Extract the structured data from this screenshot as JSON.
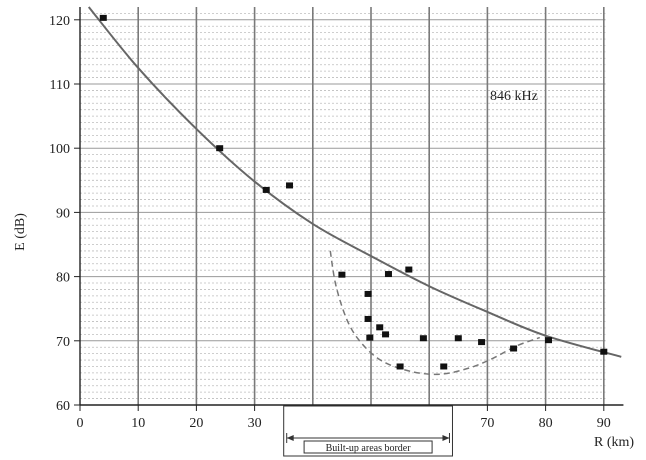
{
  "chart_data": {
    "type": "scatter",
    "title": "",
    "xlabel": "R (km)",
    "ylabel": "E (dB)",
    "xlim": [
      0,
      92
    ],
    "ylim": [
      60,
      122
    ],
    "x_ticks": [
      0,
      10,
      20,
      30,
      40,
      50,
      60,
      70,
      80,
      90
    ],
    "y_ticks": [
      60,
      70,
      80,
      90,
      100,
      110,
      120
    ],
    "grid": true,
    "annotations": [
      {
        "text": "846 kHz"
      },
      {
        "text": "Built-up areas border",
        "x_range": [
          35,
          64
        ]
      }
    ],
    "series": [
      {
        "type": "scatter",
        "points": [
          [
            4,
            120.3
          ],
          [
            24,
            100
          ],
          [
            32,
            93.5
          ],
          [
            36,
            94.2
          ],
          [
            45,
            80.3
          ],
          [
            49.5,
            77.3
          ],
          [
            49.5,
            73.4
          ],
          [
            49.8,
            70.5
          ],
          [
            51.5,
            72.1
          ],
          [
            52.5,
            71
          ],
          [
            53,
            80.4
          ],
          [
            56.5,
            81.1
          ],
          [
            55,
            66
          ],
          [
            59,
            70.4
          ],
          [
            62.5,
            66
          ],
          [
            65,
            70.4
          ],
          [
            69,
            69.8
          ],
          [
            74.5,
            68.8
          ],
          [
            80.5,
            70.1
          ],
          [
            90,
            68.3
          ]
        ]
      },
      {
        "type": "line",
        "style": "solid",
        "points": [
          [
            1.5,
            122
          ],
          [
            10,
            112.5
          ],
          [
            20,
            103
          ],
          [
            30,
            94.8
          ],
          [
            40,
            88.2
          ],
          [
            50,
            83.2
          ],
          [
            60,
            78.5
          ],
          [
            70,
            74.5
          ],
          [
            80,
            70.8
          ],
          [
            93,
            67.5
          ]
        ]
      },
      {
        "type": "line",
        "style": "dashed",
        "points": [
          [
            43,
            84
          ],
          [
            44,
            78.5
          ],
          [
            46,
            73
          ],
          [
            48.5,
            69.5
          ],
          [
            52,
            66.8
          ],
          [
            57,
            65.2
          ],
          [
            62,
            64.8
          ],
          [
            67,
            65.8
          ],
          [
            71,
            67.3
          ],
          [
            75,
            69.2
          ],
          [
            79,
            70.5
          ]
        ]
      }
    ]
  }
}
